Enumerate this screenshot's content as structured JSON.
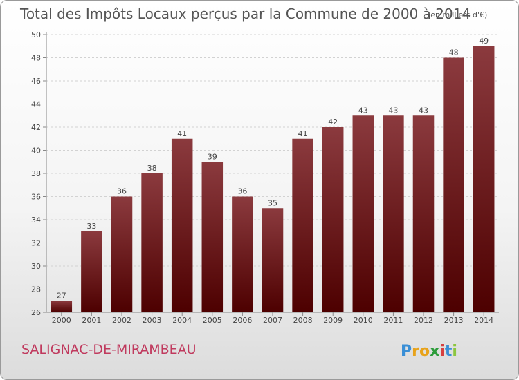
{
  "chart_data": {
    "type": "bar",
    "title": "Total des Impôts Locaux perçus par la Commune de 2000 à 2014",
    "title_unit": "(en milliers d'€)",
    "categories": [
      "2000",
      "2001",
      "2002",
      "2003",
      "2004",
      "2005",
      "2006",
      "2007",
      "2008",
      "2009",
      "2010",
      "2011",
      "2012",
      "2013",
      "2014"
    ],
    "values": [
      27,
      33,
      36,
      38,
      41,
      39,
      36,
      35,
      41,
      42,
      43,
      43,
      43,
      48,
      49
    ],
    "ylim": [
      26,
      50
    ],
    "yticks": [
      26,
      28,
      30,
      32,
      34,
      36,
      38,
      40,
      42,
      44,
      46,
      48,
      50
    ],
    "xlabel": "",
    "ylabel": "",
    "grid": true,
    "bar_color_top": "#8b3a3e",
    "bar_color_bottom": "#4d0000"
  },
  "commune_name": "SALIGNAC-DE-MIRAMBEAU",
  "logo": {
    "letters": [
      "P",
      "r",
      "o",
      "x",
      "i",
      "t",
      "i"
    ],
    "colors": [
      "#3a8fd6",
      "#e8a31b",
      "#e8a31b",
      "#2c9c3a",
      "#d64040",
      "#3a8fd6",
      "#8cc63f"
    ]
  }
}
